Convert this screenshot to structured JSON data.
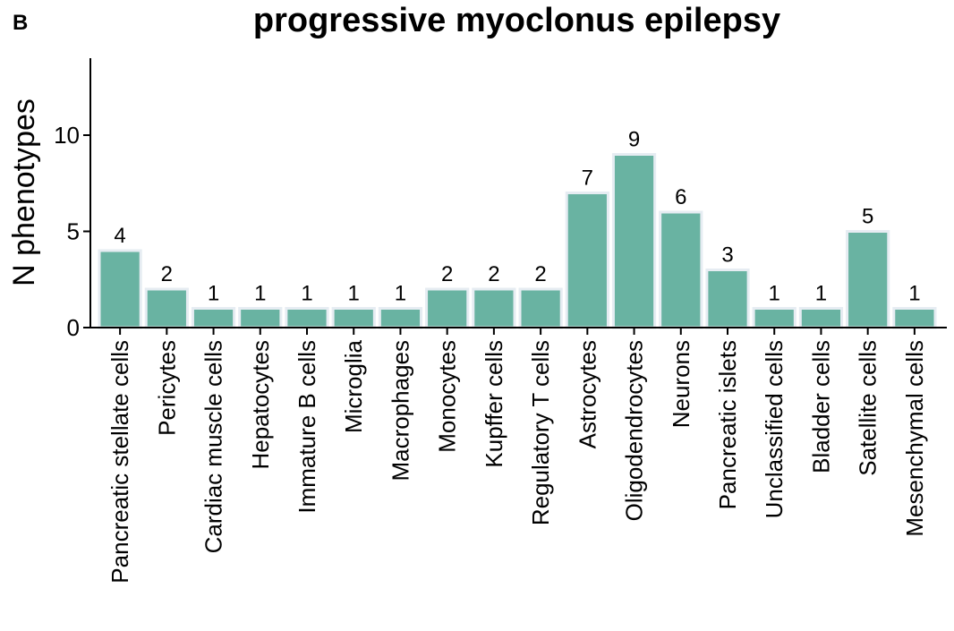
{
  "panel_label": "B",
  "chart_data": {
    "type": "bar",
    "title": "progressive myoclonus epilepsy",
    "xlabel": "",
    "ylabel": "N phenotypes",
    "ylim": [
      0,
      14
    ],
    "yticks": [
      0,
      5,
      10
    ],
    "grid": false,
    "bar_color": "#69b3a2",
    "bar_edge_color": "#e6ecf2",
    "categories": [
      "Pancreatic stellate cells",
      "Pericytes",
      "Cardiac muscle cells",
      "Hepatocytes",
      "Immature B cells",
      "Microglia",
      "Macrophages",
      "Monocytes",
      "Kupffer cells",
      "Regulatory T cells",
      "Astrocytes",
      "Oligodendrocytes",
      "Neurons",
      "Pancreatic islets",
      "Unclassified cells",
      "Bladder cells",
      "Satellite cells",
      "Mesenchymal cells"
    ],
    "values": [
      4,
      2,
      1,
      1,
      1,
      1,
      1,
      2,
      2,
      2,
      7,
      9,
      6,
      3,
      1,
      1,
      5,
      1
    ]
  }
}
